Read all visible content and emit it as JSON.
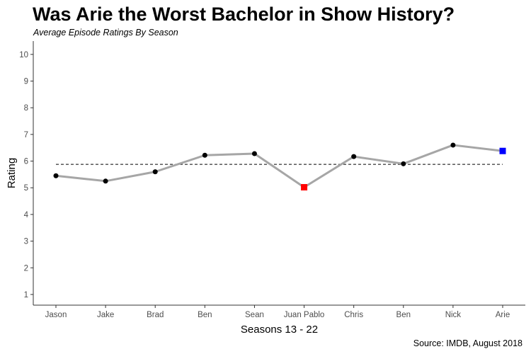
{
  "chart_data": {
    "type": "line",
    "title": "Was Arie the Worst Bachelor in Show History?",
    "subtitle": "Average Episode Ratings By Season",
    "caption": "Source: IMDB, August 2018",
    "xlabel": "Seasons 13 - 22",
    "ylabel": "Rating",
    "ylim": [
      0.6,
      10.5
    ],
    "yticks": [
      1,
      2,
      3,
      4,
      5,
      6,
      7,
      8,
      9,
      10
    ],
    "categories": [
      "Jason",
      "Jake",
      "Brad",
      "Ben",
      "Sean",
      "Juan Pablo",
      "Chris",
      "Ben",
      "Nick",
      "Arie"
    ],
    "series": [
      {
        "values": [
          5.45,
          5.25,
          5.6,
          6.22,
          6.28,
          5.02,
          6.17,
          5.9,
          6.6,
          6.38
        ]
      }
    ],
    "reference_line": {
      "style": "dashed",
      "value": 5.88,
      "color": "#000000"
    },
    "highlights": [
      {
        "category_index": 5,
        "marker": "square",
        "color": "#ff0000"
      },
      {
        "category_index": 9,
        "marker": "square",
        "color": "#0000ff"
      }
    ],
    "colors": {
      "line": "#a6a6a6",
      "point": "#000000"
    },
    "grid": false,
    "legend": "none"
  }
}
